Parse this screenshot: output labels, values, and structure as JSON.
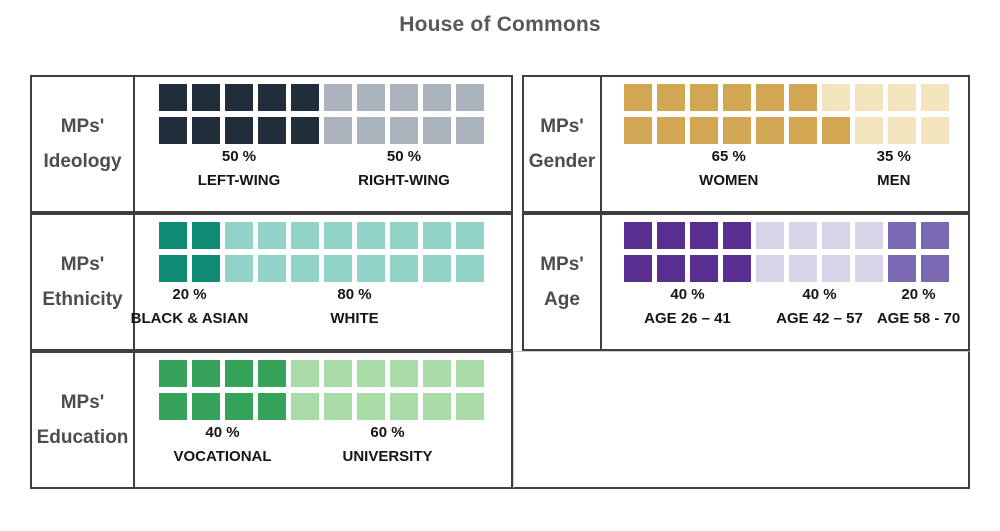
{
  "title": "House of Commons",
  "chart_data": {
    "type": "waffle",
    "title": "House of Commons",
    "grid": {
      "columns": 10,
      "rows": 2,
      "total_units": 20,
      "unit_pct": 5
    },
    "panels": [
      {
        "name": "MPs' Ideology",
        "label_lines": [
          "MPs'",
          "Ideology"
        ],
        "segments": [
          {
            "label": "LEFT-WING",
            "pct_label": "50 %",
            "pct": 50,
            "units": 10,
            "color": "#212d3b"
          },
          {
            "label": "RIGHT-WING",
            "pct_label": "50 %",
            "pct": 50,
            "units": 10,
            "color": "#abb4bc"
          }
        ]
      },
      {
        "name": "MPs' Gender",
        "label_lines": [
          "MPs'",
          "Gender"
        ],
        "segments": [
          {
            "label": "WOMEN",
            "pct_label": "65 %",
            "pct": 65,
            "units": 13,
            "color": "#d3a653"
          },
          {
            "label": "MEN",
            "pct_label": "35 %",
            "pct": 35,
            "units": 7,
            "color": "#f3e4bd"
          }
        ]
      },
      {
        "name": "MPs' Ethnicity",
        "label_lines": [
          "MPs'",
          "Ethnicity"
        ],
        "segments": [
          {
            "label": "BLACK & ASIAN",
            "pct_label": "20 %",
            "pct": 20,
            "units": 4,
            "color": "#0e8a75"
          },
          {
            "label": "WHITE",
            "pct_label": "80 %",
            "pct": 80,
            "units": 16,
            "color": "#91d4c7"
          }
        ]
      },
      {
        "name": "MPs' Age",
        "label_lines": [
          "MPs'",
          "Age"
        ],
        "segments": [
          {
            "label": "AGE 26 – 41",
            "pct_label": "40 %",
            "pct": 40,
            "units": 8,
            "color": "#582e90"
          },
          {
            "label": "AGE 42 – 57",
            "pct_label": "40 %",
            "pct": 40,
            "units": 8,
            "color": "#d7d3e9"
          },
          {
            "label": "AGE 58 - 70",
            "pct_label": "20 %",
            "pct": 20,
            "units": 4,
            "color": "#7a6ab4"
          }
        ]
      },
      {
        "name": "MPs' Education",
        "label_lines": [
          "MPs'",
          "Education"
        ],
        "segments": [
          {
            "label": "VOCATIONAL",
            "pct_label": "40 %",
            "pct": 40,
            "units": 8,
            "color": "#36a35a"
          },
          {
            "label": "UNIVERSITY",
            "pct_label": "60 %",
            "pct": 60,
            "units": 12,
            "color": "#a9dba7"
          }
        ]
      }
    ]
  }
}
